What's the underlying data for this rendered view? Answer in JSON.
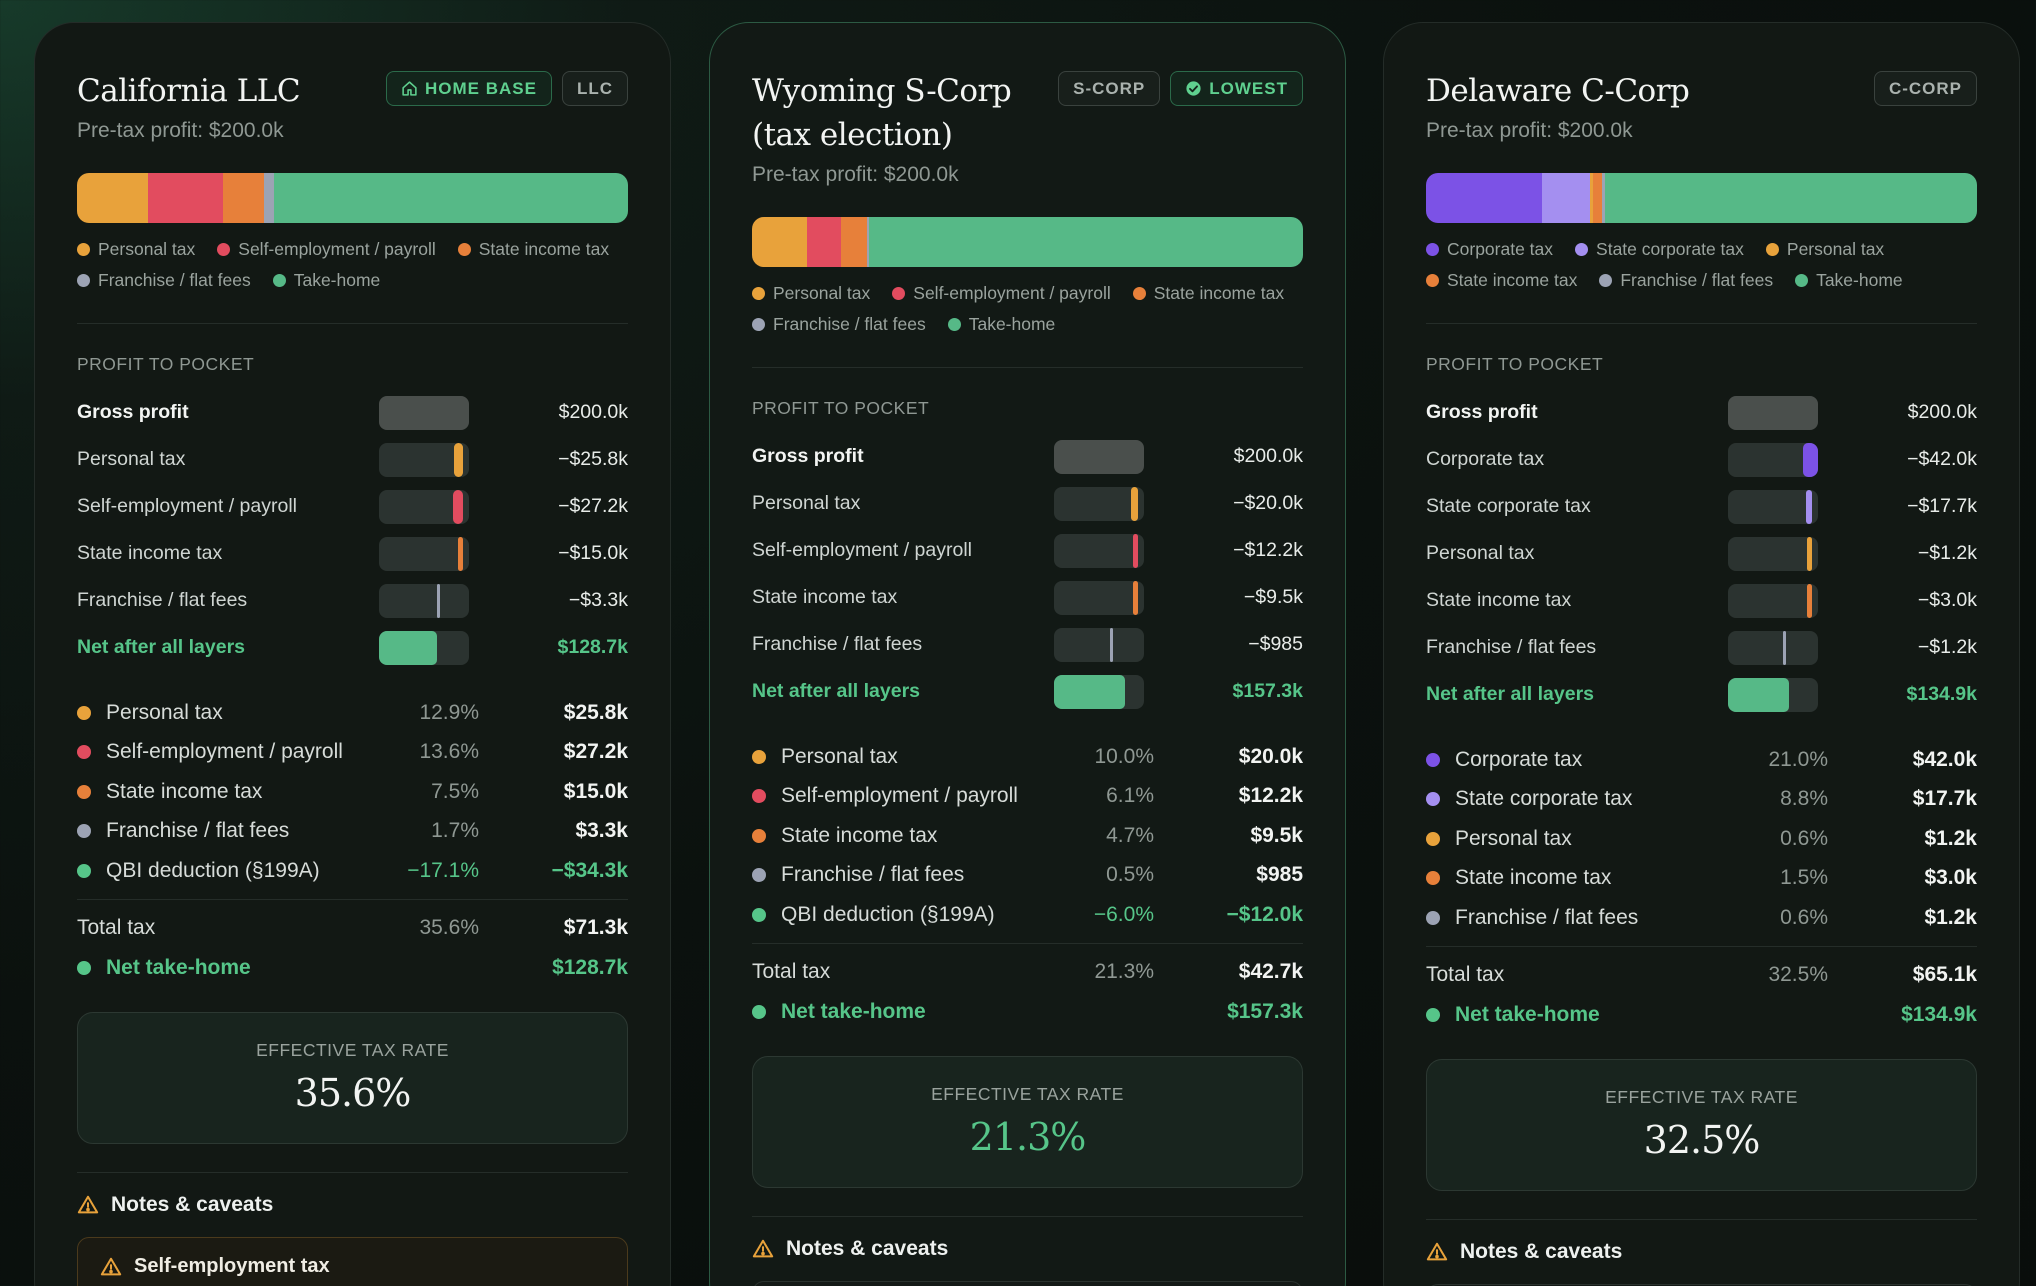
{
  "colors": {
    "personal": "#e8a23b",
    "se": "#e24c5f",
    "state_income": "#e7803a",
    "franchise": "#9ca3b4",
    "qbi": "#56c589",
    "takehome": "#56b987",
    "corporate": "#7c52e6",
    "state_corporate": "#a48ff0"
  },
  "cards": [
    {
      "title": "California LLC",
      "badges": [
        {
          "label": "HOME BASE",
          "icon": "home-icon",
          "style": "green"
        },
        {
          "label": "LLC",
          "style": "gray"
        }
      ],
      "subtitle": "Pre-tax profit: $200.0k",
      "stack": [
        {
          "key": "personal",
          "pct": 12.9
        },
        {
          "key": "se",
          "pct": 13.6
        },
        {
          "key": "state_income",
          "pct": 7.5
        },
        {
          "key": "franchise",
          "pct": 1.7
        },
        {
          "key": "takehome",
          "pct": 64.4
        }
      ],
      "legend": [
        {
          "label": "Personal tax",
          "key": "personal"
        },
        {
          "label": "Self-employment / payroll",
          "key": "se"
        },
        {
          "label": "State income tax",
          "key": "state_income"
        },
        {
          "label": "Franchise / flat fees",
          "key": "franchise"
        },
        {
          "label": "Take-home",
          "key": "takehome"
        }
      ],
      "section_label": "PROFIT TO POCKET",
      "p2p": [
        {
          "label": "Gross profit",
          "value": "$200.0k",
          "type": "gross",
          "frac": 1.0
        },
        {
          "label": "Personal tax",
          "value": "−$25.8k",
          "type": "tax",
          "key": "personal",
          "frac": 0.129
        },
        {
          "label": "Self-employment / payroll",
          "value": "−$27.2k",
          "type": "tax",
          "key": "se",
          "frac": 0.136
        },
        {
          "label": "State income tax",
          "value": "−$15.0k",
          "type": "tax",
          "key": "state_income",
          "frac": 0.075
        },
        {
          "label": "Franchise / flat fees",
          "value": "−$3.3k",
          "type": "tax",
          "key": "franchise",
          "frac": 0.017
        },
        {
          "label": "Net after all layers",
          "value": "$128.7k",
          "type": "net",
          "key": "takehome",
          "frac": 0.644
        }
      ],
      "breakdown": [
        {
          "label": "Personal tax",
          "pct": "12.9%",
          "amt": "$25.8k",
          "key": "personal"
        },
        {
          "label": "Self-employment / payroll",
          "pct": "13.6%",
          "amt": "$27.2k",
          "key": "se"
        },
        {
          "label": "State income tax",
          "pct": "7.5%",
          "amt": "$15.0k",
          "key": "state_income"
        },
        {
          "label": "Franchise / flat fees",
          "pct": "1.7%",
          "amt": "$3.3k",
          "key": "franchise"
        },
        {
          "label": "QBI deduction (§199A)",
          "pct": "−17.1%",
          "amt": "−$34.3k",
          "key": "qbi",
          "neg": true
        }
      ],
      "total": {
        "label": "Total tax",
        "pct": "35.6%",
        "amt": "$71.3k"
      },
      "take_home": {
        "label": "Net take-home",
        "amt": "$128.7k"
      },
      "etr": {
        "label": "EFFECTIVE TAX RATE",
        "value": "35.6%",
        "green": false
      },
      "notes_title": "Notes & caveats",
      "note": {
        "label": "Self-employment tax",
        "warn": true
      }
    },
    {
      "title": "Wyoming S-Corp (tax election)",
      "badges": [
        {
          "label": "S-CORP",
          "style": "gray"
        },
        {
          "label": "LOWEST",
          "icon": "check-circle-icon",
          "style": "green"
        }
      ],
      "subtitle": "Pre-tax profit: $200.0k",
      "stack": [
        {
          "key": "personal",
          "pct": 10.0
        },
        {
          "key": "se",
          "pct": 6.1
        },
        {
          "key": "state_income",
          "pct": 4.7
        },
        {
          "key": "franchise",
          "pct": 0.5
        },
        {
          "key": "takehome",
          "pct": 78.7
        }
      ],
      "legend": [
        {
          "label": "Personal tax",
          "key": "personal"
        },
        {
          "label": "Self-employment / payroll",
          "key": "se"
        },
        {
          "label": "State income tax",
          "key": "state_income"
        },
        {
          "label": "Franchise / flat fees",
          "key": "franchise"
        },
        {
          "label": "Take-home",
          "key": "takehome"
        }
      ],
      "section_label": "PROFIT TO POCKET",
      "p2p": [
        {
          "label": "Gross profit",
          "value": "$200.0k",
          "type": "gross",
          "frac": 1.0
        },
        {
          "label": "Personal tax",
          "value": "−$20.0k",
          "type": "tax",
          "key": "personal",
          "frac": 0.1
        },
        {
          "label": "Self-employment / payroll",
          "value": "−$12.2k",
          "type": "tax",
          "key": "se",
          "frac": 0.061
        },
        {
          "label": "State income tax",
          "value": "−$9.5k",
          "type": "tax",
          "key": "state_income",
          "frac": 0.047
        },
        {
          "label": "Franchise / flat fees",
          "value": "−$985",
          "type": "tax",
          "key": "franchise",
          "frac": 0.005
        },
        {
          "label": "Net after all layers",
          "value": "$157.3k",
          "type": "net",
          "key": "takehome",
          "frac": 0.787
        }
      ],
      "breakdown": [
        {
          "label": "Personal tax",
          "pct": "10.0%",
          "amt": "$20.0k",
          "key": "personal"
        },
        {
          "label": "Self-employment / payroll",
          "pct": "6.1%",
          "amt": "$12.2k",
          "key": "se"
        },
        {
          "label": "State income tax",
          "pct": "4.7%",
          "amt": "$9.5k",
          "key": "state_income"
        },
        {
          "label": "Franchise / flat fees",
          "pct": "0.5%",
          "amt": "$985",
          "key": "franchise"
        },
        {
          "label": "QBI deduction (§199A)",
          "pct": "−6.0%",
          "amt": "−$12.0k",
          "key": "qbi",
          "neg": true
        }
      ],
      "total": {
        "label": "Total tax",
        "pct": "21.3%",
        "amt": "$42.7k"
      },
      "take_home": {
        "label": "Net take-home",
        "amt": "$157.3k"
      },
      "etr": {
        "label": "EFFECTIVE TAX RATE",
        "value": "21.3%",
        "green": true
      },
      "notes_title": "Notes & caveats",
      "note": null
    },
    {
      "title": "Delaware C-Corp",
      "badges": [
        {
          "label": "C-CORP",
          "style": "gray"
        }
      ],
      "subtitle": "Pre-tax profit: $200.0k",
      "stack": [
        {
          "key": "corporate",
          "pct": 21.0
        },
        {
          "key": "state_corporate",
          "pct": 8.8
        },
        {
          "key": "personal",
          "pct": 0.6
        },
        {
          "key": "state_income",
          "pct": 1.5
        },
        {
          "key": "franchise",
          "pct": 0.6
        },
        {
          "key": "takehome",
          "pct": 67.5
        }
      ],
      "legend": [
        {
          "label": "Corporate tax",
          "key": "corporate"
        },
        {
          "label": "State corporate tax",
          "key": "state_corporate"
        },
        {
          "label": "Personal tax",
          "key": "personal"
        },
        {
          "label": "State income tax",
          "key": "state_income"
        },
        {
          "label": "Franchise / flat fees",
          "key": "franchise"
        },
        {
          "label": "Take-home",
          "key": "takehome"
        }
      ],
      "section_label": "PROFIT TO POCKET",
      "p2p": [
        {
          "label": "Gross profit",
          "value": "$200.0k",
          "type": "gross",
          "frac": 1.0
        },
        {
          "label": "Corporate tax",
          "value": "−$42.0k",
          "type": "tax",
          "key": "corporate",
          "frac": 0.21
        },
        {
          "label": "State corporate tax",
          "value": "−$17.7k",
          "type": "tax",
          "key": "state_corporate",
          "frac": 0.088
        },
        {
          "label": "Personal tax",
          "value": "−$1.2k",
          "type": "tax",
          "key": "personal",
          "frac": 0.006
        },
        {
          "label": "State income tax",
          "value": "−$3.0k",
          "type": "tax",
          "key": "state_income",
          "frac": 0.015
        },
        {
          "label": "Franchise / flat fees",
          "value": "−$1.2k",
          "type": "tax",
          "key": "franchise",
          "frac": 0.006
        },
        {
          "label": "Net after all layers",
          "value": "$134.9k",
          "type": "net",
          "key": "takehome",
          "frac": 0.675
        }
      ],
      "breakdown": [
        {
          "label": "Corporate tax",
          "pct": "21.0%",
          "amt": "$42.0k",
          "key": "corporate"
        },
        {
          "label": "State corporate tax",
          "pct": "8.8%",
          "amt": "$17.7k",
          "key": "state_corporate"
        },
        {
          "label": "Personal tax",
          "pct": "0.6%",
          "amt": "$1.2k",
          "key": "personal"
        },
        {
          "label": "State income tax",
          "pct": "1.5%",
          "amt": "$3.0k",
          "key": "state_income"
        },
        {
          "label": "Franchise / flat fees",
          "pct": "0.6%",
          "amt": "$1.2k",
          "key": "franchise"
        }
      ],
      "total": {
        "label": "Total tax",
        "pct": "32.5%",
        "amt": "$65.1k"
      },
      "take_home": {
        "label": "Net take-home",
        "amt": "$134.9k"
      },
      "etr": {
        "label": "EFFECTIVE TAX RATE",
        "value": "32.5%",
        "green": false
      },
      "notes_title": "Notes & caveats",
      "note": null
    }
  ]
}
